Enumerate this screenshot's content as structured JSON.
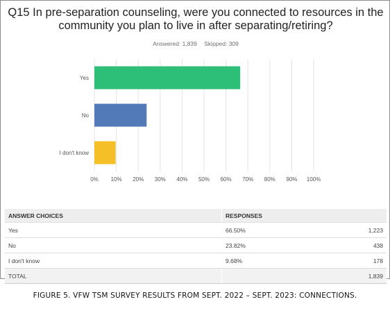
{
  "title": "Q15 In pre-separation counseling, were you connected to resources in the community you plan to live in after separating/retiring?",
  "answered": "Answered: 1,839",
  "skipped": "Skipped: 309",
  "chart_data": {
    "type": "bar",
    "orientation": "horizontal",
    "categories": [
      "Yes",
      "No",
      "I don't know"
    ],
    "values": [
      66.5,
      23.82,
      9.68
    ],
    "colors": [
      "#2dbe77",
      "#5279b8",
      "#f4bf27"
    ],
    "xlim": [
      0,
      100
    ],
    "xticks": [
      "0%",
      "10%",
      "20%",
      "30%",
      "40%",
      "50%",
      "60%",
      "70%",
      "80%",
      "90%",
      "100%"
    ],
    "grid": "vertical"
  },
  "table": {
    "headers": [
      "ANSWER CHOICES",
      "RESPONSES"
    ],
    "rows": [
      {
        "choice": "Yes",
        "percent": "66.50%",
        "count": "1,223"
      },
      {
        "choice": "No",
        "percent": "23.82%",
        "count": "438"
      },
      {
        "choice": "I don't know",
        "percent": "9.68%",
        "count": "178"
      }
    ],
    "total_label": "TOTAL",
    "total_count": "1,839"
  },
  "caption": "FIGURE 5. VFW TSM SURVEY RESULTS FROM SEPT. 2022 – SEPT. 2023: CONNECTIONS."
}
